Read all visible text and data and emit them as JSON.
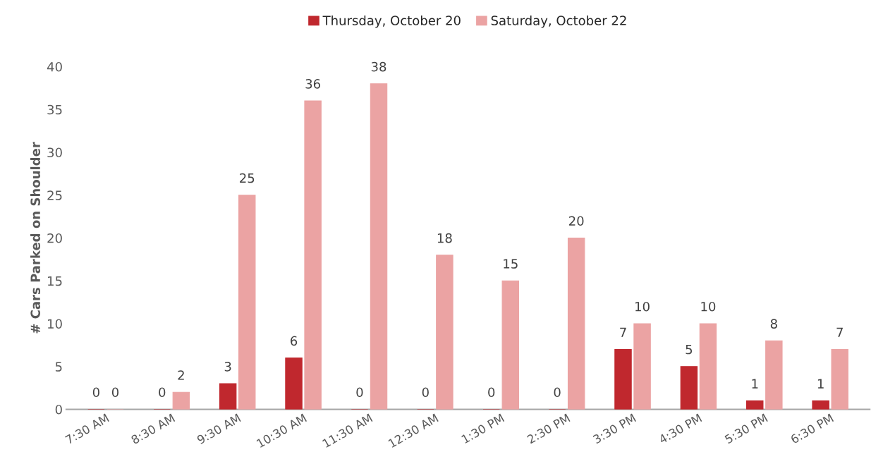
{
  "chart_data": {
    "type": "bar",
    "ylabel": "# Cars Parked on Shoulder",
    "categories": [
      "7:30 AM",
      "8:30 AM",
      "9:30 AM",
      "10:30 AM",
      "11:30 AM",
      "12:30 AM",
      "1:30 PM",
      "2:30 PM",
      "3:30 PM",
      "4:30 PM",
      "5:30 PM",
      "6:30 PM"
    ],
    "series": [
      {
        "name": "Thursday, October 20",
        "color": "#c0282e",
        "values": [
          0,
          0,
          3,
          6,
          0,
          0,
          0,
          0,
          7,
          5,
          1,
          1
        ]
      },
      {
        "name": "Saturday, October 22",
        "color": "#eba3a3",
        "values": [
          0,
          2,
          25,
          36,
          38,
          18,
          15,
          20,
          10,
          10,
          8,
          7
        ]
      }
    ],
    "ylim": [
      0,
      40
    ],
    "yticks": [
      0,
      5,
      10,
      15,
      20,
      25,
      30,
      35,
      40
    ],
    "data_labels": true,
    "legend": "top",
    "grid": false
  }
}
